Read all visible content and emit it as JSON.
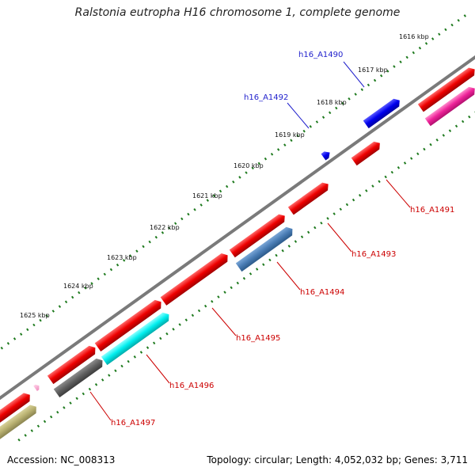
{
  "title": "Ralstonia eutropha H16 chromosome 1, complete genome",
  "footer": {
    "accession": "Accession: NC_008313",
    "summary": "Topology: circular; Length: 4,052,032 bp; Genes: 3,711"
  },
  "colors": {
    "backbone": "#7a7a7a",
    "tick": "#1e7a1e",
    "forward_label": "#1f1fcc",
    "reverse_label": "#cc0000"
  },
  "kbp_labels": [
    "1616 kbp",
    "1617 kbp",
    "1618 kbp",
    "1619 kbp",
    "1620 kbp",
    "1621 kbp",
    "1622 kbp",
    "1623 kbp",
    "1624 kbp",
    "1625 kbp"
  ],
  "gene_labels": [
    {
      "text": "h16_A1490",
      "strand": "forward"
    },
    {
      "text": "h16_A1492",
      "strand": "forward"
    },
    {
      "text": "h16_A1491",
      "strand": "reverse"
    },
    {
      "text": "h16_A1493",
      "strand": "reverse"
    },
    {
      "text": "h16_A1494",
      "strand": "reverse"
    },
    {
      "text": "h16_A1495",
      "strand": "reverse"
    },
    {
      "text": "h16_A1496",
      "strand": "reverse"
    },
    {
      "text": "h16_A1497",
      "strand": "reverse"
    }
  ]
}
